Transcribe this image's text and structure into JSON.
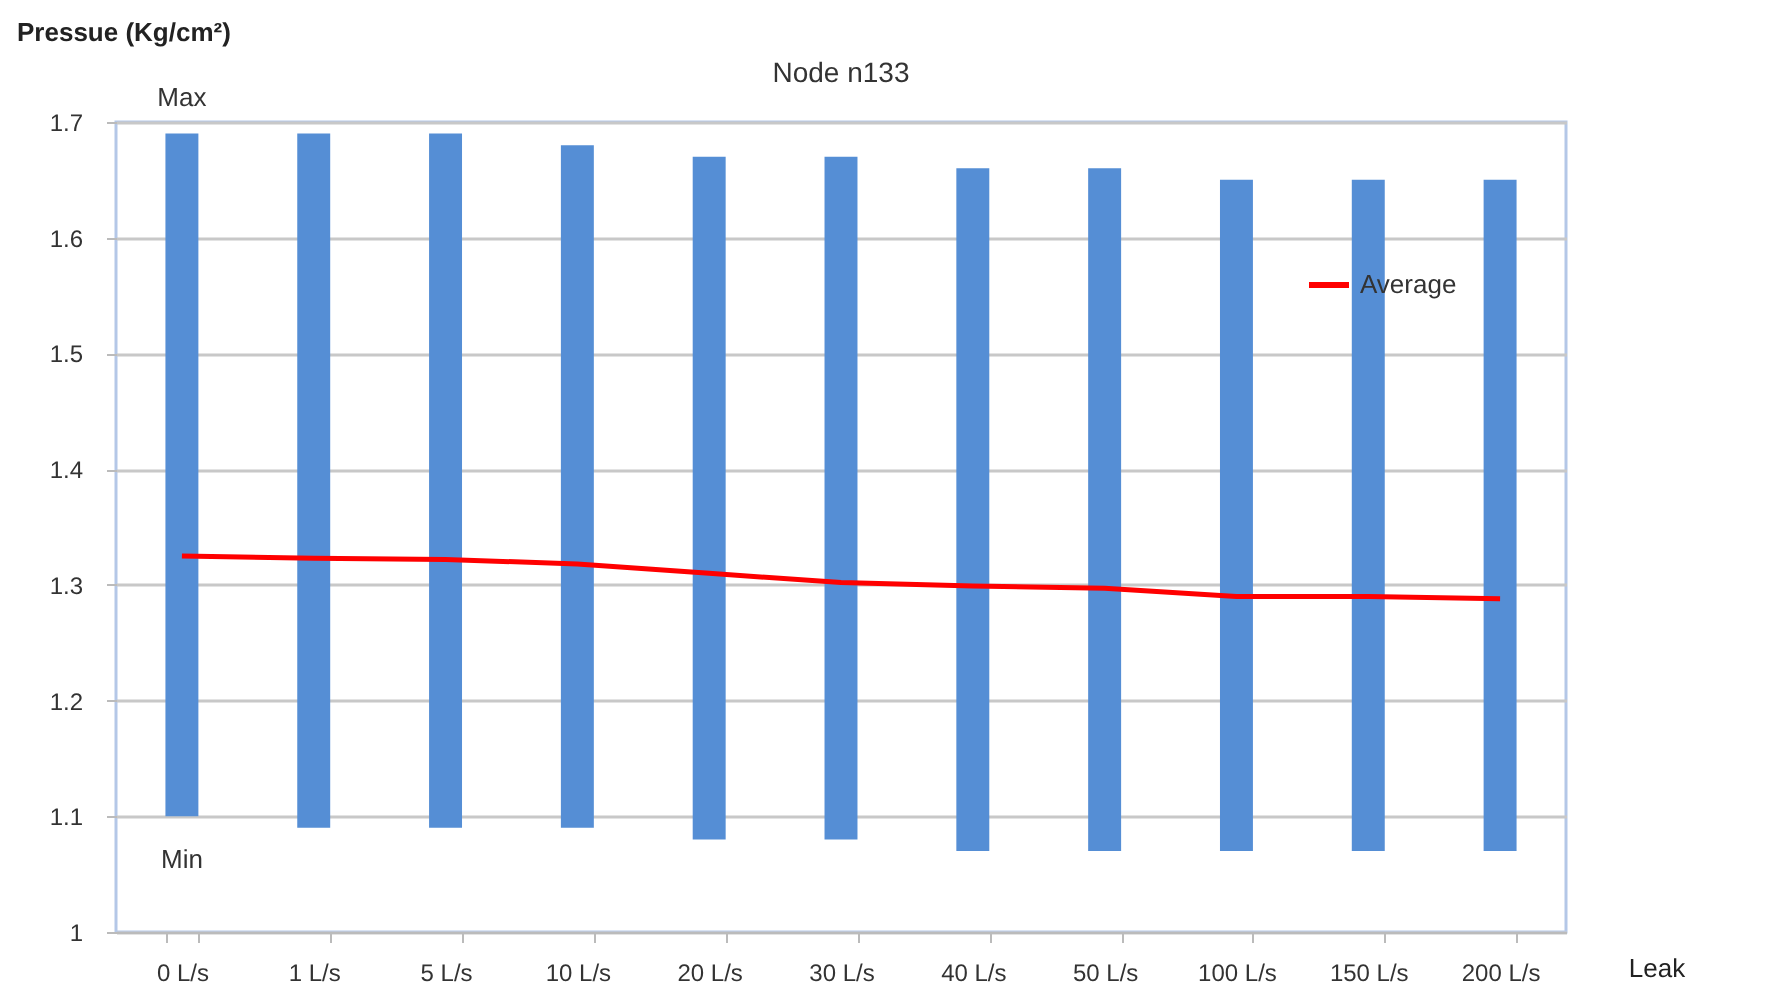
{
  "chart_data": {
    "type": "bar",
    "title": "Node  n133",
    "xlabel": "Leak",
    "ylabel": "Pressue (Kg/cm²)",
    "categories": [
      "0 L/s",
      "1 L/s",
      "5 L/s",
      "10 L/s",
      "20 L/s",
      "30 L/s",
      "40 L/s",
      "50 L/s",
      "100 L/s",
      "150 L/s",
      "200 L/s"
    ],
    "series": [
      {
        "color": "#558ed5",
        "base": [
          1.1,
          1.09,
          1.09,
          1.09,
          1.08,
          1.08,
          1.07,
          1.07,
          1.07,
          1.07,
          1.07
        ],
        "values": [
          0.59,
          0.6,
          0.6,
          0.59,
          0.59,
          0.59,
          0.59,
          0.59,
          0.58,
          0.58,
          0.58
        ]
      },
      {
        "type": "line",
        "name": "Average",
        "color": "#ff0000",
        "values": [
          1.325,
          1.323,
          1.322,
          1.318,
          1.31,
          1.302,
          1.299,
          1.297,
          1.29,
          1.29,
          1.288
        ]
      }
    ],
    "ylim": [
      1,
      1.7
    ],
    "yticks": [
      1,
      1.1,
      1.2,
      1.3,
      1.4,
      1.5,
      1.6,
      1.7
    ],
    "annotations": [
      {
        "text": "Max",
        "x": "0 L/s",
        "y": 1.69
      },
      {
        "text": "Min",
        "x": "0 L/s",
        "y": 1.1
      }
    ],
    "grid": "y",
    "legend": "top right",
    "marker": "none",
    "line_style": "solid"
  }
}
